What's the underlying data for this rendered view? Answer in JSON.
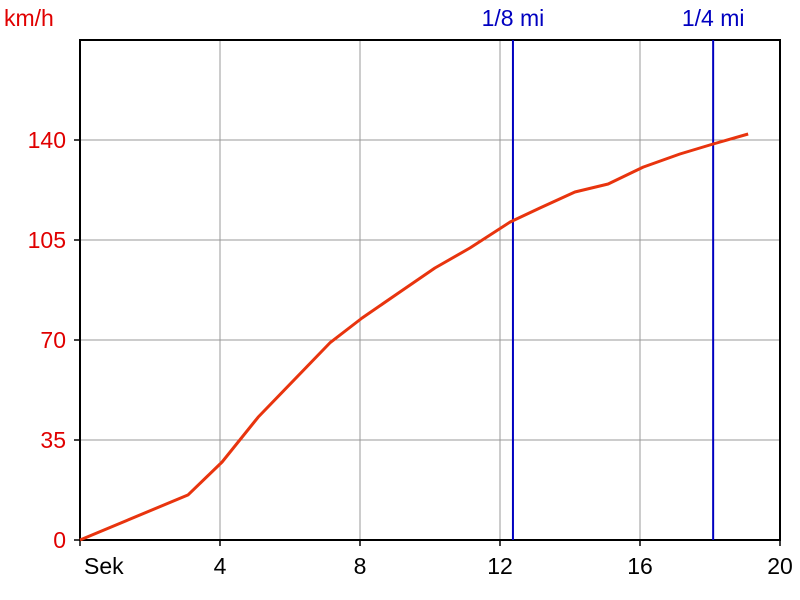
{
  "chart_data": {
    "type": "line",
    "y_label": "km/h",
    "x": [
      0,
      3.09,
      4.06,
      5.09,
      7.14,
      8.06,
      9.14,
      10.14,
      11.14,
      12.29,
      13.14,
      14.14,
      15.09,
      16.09,
      17.14,
      18.09,
      19.09
    ],
    "values": [
      0,
      15.8,
      27.3,
      43,
      69,
      77.7,
      86.8,
      95.2,
      102.2,
      111.3,
      116.2,
      121.8,
      124.6,
      130.5,
      135.1,
      138.6,
      142.1
    ],
    "color": "#e8340e",
    "xlim": [
      0,
      20
    ],
    "ylim": [
      0,
      175
    ],
    "xticks": [
      {
        "value": 0,
        "label": "Sek"
      },
      4,
      8,
      12,
      16,
      20
    ],
    "yticks": [
      0,
      35,
      70,
      105,
      140
    ],
    "grid": true,
    "markers": [
      {
        "value": 12.37,
        "label": "1/8 mi",
        "color": "#0000c0"
      },
      {
        "value": 18.09,
        "label": "1/4 mi",
        "color": "#0000c0"
      }
    ],
    "y_color": "#e00000"
  }
}
